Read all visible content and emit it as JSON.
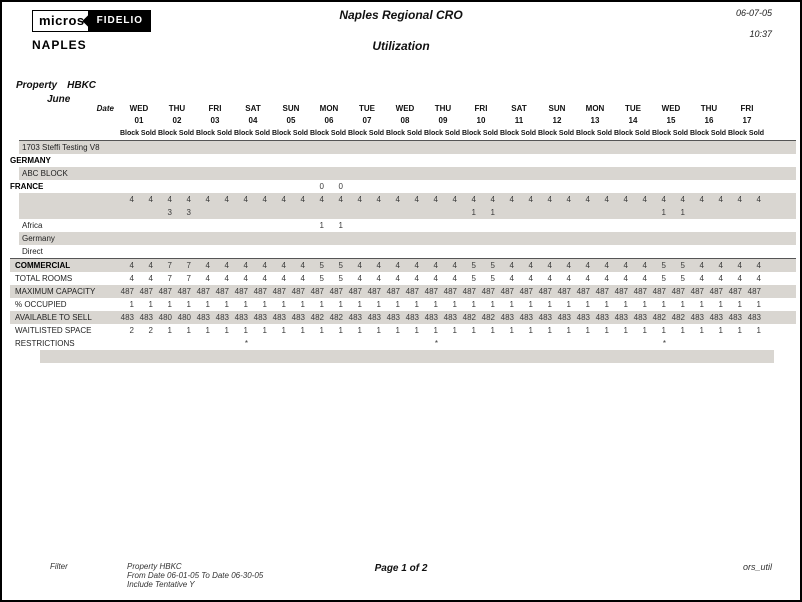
{
  "header": {
    "logo_micros": "micros",
    "logo_fidelio": "FIDELIO",
    "report_title": "Naples Regional CRO",
    "report_subtitle": "Utilization",
    "office": "NAPLES",
    "print_date": "06-07-05",
    "print_time": "10:37"
  },
  "property": {
    "label": "Property",
    "value": "HBKC",
    "month": "June"
  },
  "table": {
    "date_label": "Date",
    "sub_headers": [
      "Block",
      "Sold"
    ],
    "shade_color": "#d9d6d1",
    "dates": [
      {
        "dow": "WED",
        "num": "01"
      },
      {
        "dow": "THU",
        "num": "02"
      },
      {
        "dow": "FRI",
        "num": "03"
      },
      {
        "dow": "SAT",
        "num": "04"
      },
      {
        "dow": "SUN",
        "num": "05"
      },
      {
        "dow": "MON",
        "num": "06"
      },
      {
        "dow": "TUE",
        "num": "07"
      },
      {
        "dow": "WED",
        "num": "08"
      },
      {
        "dow": "THU",
        "num": "09"
      },
      {
        "dow": "FRI",
        "num": "10"
      },
      {
        "dow": "SAT",
        "num": "11"
      },
      {
        "dow": "SUN",
        "num": "12"
      },
      {
        "dow": "MON",
        "num": "13"
      },
      {
        "dow": "TUE",
        "num": "14"
      },
      {
        "dow": "WED",
        "num": "15"
      },
      {
        "dow": "THU",
        "num": "16"
      },
      {
        "dow": "FRI",
        "num": "17"
      }
    ],
    "rows": [
      {
        "label": "1703 Steffi Testing V8",
        "indent": 9,
        "pad": 3,
        "shade": true,
        "bold": false,
        "topline": true,
        "cells": [
          "",
          "",
          "",
          "",
          "",
          "",
          "",
          "",
          "",
          "",
          "",
          "",
          "",
          "",
          "",
          "",
          "",
          "",
          "",
          "",
          "",
          "",
          "",
          "",
          "",
          "",
          "",
          "",
          "",
          "",
          "",
          "",
          "",
          ""
        ]
      },
      {
        "label": "GERMANY",
        "indent": 0,
        "pad": 0,
        "shade": false,
        "bold": true,
        "cells": [
          "",
          "",
          "",
          "",
          "",
          "",
          "",
          "",
          "",
          "",
          "",
          "",
          "",
          "",
          "",
          "",
          "",
          "",
          "",
          "",
          "",
          "",
          "",
          "",
          "",
          "",
          "",
          "",
          "",
          "",
          "",
          "",
          "",
          ""
        ]
      },
      {
        "label": "ABC BLOCK",
        "indent": 9,
        "pad": 3,
        "shade": true,
        "bold": false,
        "cells": [
          "",
          "",
          "",
          "",
          "",
          "",
          "",
          "",
          "",
          "",
          "",
          "",
          "",
          "",
          "",
          "",
          "",
          "",
          "",
          "",
          "",
          "",
          "",
          "",
          "",
          "",
          "",
          "",
          "",
          "",
          "",
          "",
          "",
          ""
        ]
      },
      {
        "label": "FRANCE",
        "indent": 0,
        "pad": 0,
        "shade": false,
        "bold": true,
        "cells": [
          "",
          "",
          "",
          "",
          "",
          "",
          "",
          "",
          "",
          "",
          "0",
          "0",
          "",
          "",
          "",
          "",
          "",
          "",
          "",
          "",
          "",
          "",
          "",
          "",
          "",
          "",
          "",
          "",
          "",
          "",
          "",
          "",
          "",
          ""
        ]
      },
      {
        "label": "",
        "indent": 9,
        "pad": 3,
        "shade": true,
        "bold": false,
        "cells": [
          "4",
          "4",
          "4",
          "4",
          "4",
          "4",
          "4",
          "4",
          "4",
          "4",
          "4",
          "4",
          "4",
          "4",
          "4",
          "4",
          "4",
          "4",
          "4",
          "4",
          "4",
          "4",
          "4",
          "4",
          "4",
          "4",
          "4",
          "4",
          "4",
          "4",
          "4",
          "4",
          "4",
          "4"
        ]
      },
      {
        "label": "",
        "indent": 9,
        "pad": 3,
        "shade": true,
        "bold": false,
        "cells": [
          "",
          "",
          "3",
          "3",
          "",
          "",
          "",
          "",
          "",
          "",
          "",
          "",
          "",
          "",
          "",
          "",
          "",
          "",
          "1",
          "1",
          "",
          "",
          "",
          "",
          "",
          "",
          "",
          "",
          "1",
          "1",
          "",
          "",
          "",
          ""
        ]
      },
      {
        "label": "Africa",
        "indent": 9,
        "pad": 3,
        "shade": false,
        "bold": false,
        "cells": [
          "",
          "",
          "",
          "",
          "",
          "",
          "",
          "",
          "",
          "",
          "1",
          "1",
          "",
          "",
          "",
          "",
          "",
          "",
          "",
          "",
          "",
          "",
          "",
          "",
          "",
          "",
          "",
          "",
          "",
          "",
          "",
          "",
          "",
          ""
        ]
      },
      {
        "label": "Germany",
        "indent": 9,
        "pad": 3,
        "shade": true,
        "bold": false,
        "cells": [
          "",
          "",
          "",
          "",
          "",
          "",
          "",
          "",
          "",
          "",
          "",
          "",
          "",
          "",
          "",
          "",
          "",
          "",
          "",
          "",
          "",
          "",
          "",
          "",
          "",
          "",
          "",
          "",
          "",
          "",
          "",
          "",
          "",
          ""
        ]
      },
      {
        "label": "Direct",
        "indent": 9,
        "pad": 3,
        "shade": false,
        "bold": false,
        "cells": [
          "",
          "",
          "",
          "",
          "",
          "",
          "",
          "",
          "",
          "",
          "",
          "",
          "",
          "",
          "",
          "",
          "",
          "",
          "",
          "",
          "",
          "",
          "",
          "",
          "",
          "",
          "",
          "",
          "",
          "",
          "",
          "",
          "",
          ""
        ]
      },
      {
        "label": "COMMERCIAL",
        "indent": 0,
        "pad": 5,
        "shade": true,
        "bold": true,
        "topline": true,
        "cells": [
          "4",
          "4",
          "7",
          "7",
          "4",
          "4",
          "4",
          "4",
          "4",
          "4",
          "5",
          "5",
          "4",
          "4",
          "4",
          "4",
          "4",
          "4",
          "5",
          "5",
          "4",
          "4",
          "4",
          "4",
          "4",
          "4",
          "4",
          "4",
          "5",
          "5",
          "4",
          "4",
          "4",
          "4"
        ]
      },
      {
        "label": "TOTAL ROOMS",
        "indent": 0,
        "pad": 5,
        "shade": false,
        "bold": false,
        "cells": [
          "4",
          "4",
          "7",
          "7",
          "4",
          "4",
          "4",
          "4",
          "4",
          "4",
          "5",
          "5",
          "4",
          "4",
          "4",
          "4",
          "4",
          "4",
          "5",
          "5",
          "4",
          "4",
          "4",
          "4",
          "4",
          "4",
          "4",
          "4",
          "5",
          "5",
          "4",
          "4",
          "4",
          "4"
        ]
      },
      {
        "label": "MAXIMUM CAPACITY",
        "indent": 0,
        "pad": 5,
        "shade": true,
        "bold": false,
        "cells": [
          "487",
          "487",
          "487",
          "487",
          "487",
          "487",
          "487",
          "487",
          "487",
          "487",
          "487",
          "487",
          "487",
          "487",
          "487",
          "487",
          "487",
          "487",
          "487",
          "487",
          "487",
          "487",
          "487",
          "487",
          "487",
          "487",
          "487",
          "487",
          "487",
          "487",
          "487",
          "487",
          "487",
          "487"
        ]
      },
      {
        "label": "% OCCUPIED",
        "indent": 0,
        "pad": 5,
        "shade": false,
        "bold": false,
        "cells": [
          "1",
          "1",
          "1",
          "1",
          "1",
          "1",
          "1",
          "1",
          "1",
          "1",
          "1",
          "1",
          "1",
          "1",
          "1",
          "1",
          "1",
          "1",
          "1",
          "1",
          "1",
          "1",
          "1",
          "1",
          "1",
          "1",
          "1",
          "1",
          "1",
          "1",
          "1",
          "1",
          "1",
          "1"
        ]
      },
      {
        "label": "AVAILABLE TO SELL",
        "indent": 0,
        "pad": 5,
        "shade": true,
        "bold": false,
        "cells": [
          "483",
          "483",
          "480",
          "480",
          "483",
          "483",
          "483",
          "483",
          "483",
          "483",
          "482",
          "482",
          "483",
          "483",
          "483",
          "483",
          "483",
          "483",
          "482",
          "482",
          "483",
          "483",
          "483",
          "483",
          "483",
          "483",
          "483",
          "483",
          "482",
          "482",
          "483",
          "483",
          "483",
          "483"
        ]
      },
      {
        "label": "WAITLISTED SPACE",
        "indent": 0,
        "pad": 5,
        "shade": false,
        "bold": false,
        "cells": [
          "2",
          "2",
          "1",
          "1",
          "1",
          "1",
          "1",
          "1",
          "1",
          "1",
          "1",
          "1",
          "1",
          "1",
          "1",
          "1",
          "1",
          "1",
          "1",
          "1",
          "1",
          "1",
          "1",
          "1",
          "1",
          "1",
          "1",
          "1",
          "1",
          "1",
          "1",
          "1",
          "1",
          "1"
        ]
      },
      {
        "label": "RESTRICTIONS",
        "indent": 0,
        "pad": 5,
        "shade": false,
        "bold": false,
        "cells": [
          "",
          "",
          "",
          "",
          "",
          "",
          "*",
          "",
          "",
          "",
          "",
          "",
          "",
          "",
          "",
          "",
          "*",
          "",
          "",
          "",
          "",
          "",
          "",
          "",
          "",
          "",
          "",
          "",
          "*",
          "",
          "",
          "",
          "",
          ""
        ]
      },
      {
        "label": "",
        "indent": 30,
        "pad": 0,
        "shade": true,
        "bold": false,
        "short": true,
        "cells": [
          "",
          "",
          "",
          "",
          "",
          "",
          "",
          "",
          "",
          "",
          "",
          "",
          "",
          "",
          "",
          "",
          "",
          "",
          "",
          "",
          "",
          "",
          "",
          "",
          "",
          "",
          "",
          "",
          "",
          "",
          "",
          "",
          "",
          ""
        ]
      }
    ]
  },
  "footer": {
    "filter_label": "Filter",
    "filter_line1": "Property HBKC",
    "filter_line2": "From Date 06-01-05  To Date  06-30-05",
    "filter_line3": "Include Tentative Y",
    "page": "Page 1 of 2",
    "report_id": "ors_util"
  }
}
